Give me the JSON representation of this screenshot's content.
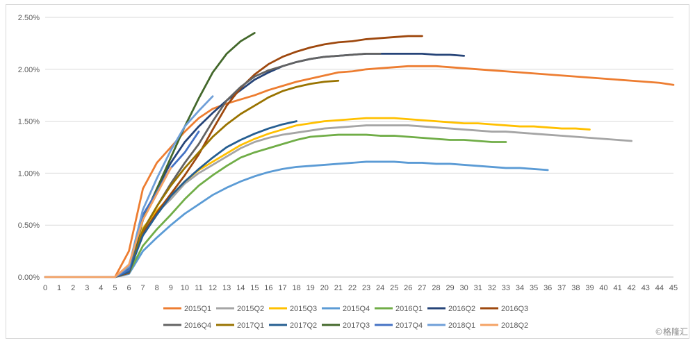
{
  "watermark": "©格隆汇",
  "chart_data": {
    "type": "line",
    "title": "",
    "xlabel": "",
    "ylabel": "",
    "xlim": [
      0,
      45
    ],
    "ylim": [
      0,
      2.5
    ],
    "y_ticks": [
      "0.00%",
      "0.50%",
      "1.00%",
      "1.50%",
      "2.00%",
      "2.50%"
    ],
    "x_ticks": [
      0,
      1,
      2,
      3,
      4,
      5,
      6,
      7,
      8,
      9,
      10,
      11,
      12,
      13,
      14,
      15,
      16,
      17,
      18,
      19,
      20,
      21,
      22,
      23,
      24,
      25,
      26,
      27,
      28,
      29,
      30,
      31,
      32,
      33,
      34,
      35,
      36,
      37,
      38,
      39,
      40,
      41,
      42,
      43,
      44,
      45
    ],
    "grid": "horizontal",
    "legend_position": "bottom",
    "series": [
      {
        "name": "2015Q1",
        "color": "#ed7d31",
        "values": [
          0,
          0,
          0,
          0,
          0,
          0,
          0.25,
          0.85,
          1.1,
          1.25,
          1.4,
          1.53,
          1.62,
          1.67,
          1.71,
          1.75,
          1.8,
          1.84,
          1.88,
          1.91,
          1.94,
          1.97,
          1.98,
          2.0,
          2.01,
          2.02,
          2.03,
          2.03,
          2.03,
          2.02,
          2.01,
          2.0,
          1.99,
          1.98,
          1.97,
          1.96,
          1.95,
          1.94,
          1.93,
          1.92,
          1.91,
          1.9,
          1.89,
          1.88,
          1.87,
          1.85
        ]
      },
      {
        "name": "2015Q2",
        "color": "#a5a5a5",
        "values": [
          0,
          0,
          0,
          0,
          0,
          0,
          0.06,
          0.45,
          0.62,
          0.75,
          0.9,
          1.0,
          1.08,
          1.16,
          1.24,
          1.3,
          1.34,
          1.37,
          1.39,
          1.41,
          1.43,
          1.44,
          1.45,
          1.46,
          1.46,
          1.46,
          1.46,
          1.45,
          1.44,
          1.43,
          1.42,
          1.41,
          1.4,
          1.4,
          1.39,
          1.38,
          1.37,
          1.36,
          1.35,
          1.34,
          1.33,
          1.32,
          1.31
        ]
      },
      {
        "name": "2015Q3",
        "color": "#ffc000",
        "values": [
          0,
          0,
          0,
          0,
          0,
          0,
          0.05,
          0.47,
          0.64,
          0.78,
          0.92,
          1.03,
          1.11,
          1.19,
          1.27,
          1.33,
          1.38,
          1.42,
          1.46,
          1.48,
          1.5,
          1.51,
          1.52,
          1.53,
          1.53,
          1.53,
          1.52,
          1.51,
          1.5,
          1.49,
          1.48,
          1.48,
          1.47,
          1.46,
          1.45,
          1.45,
          1.44,
          1.43,
          1.43,
          1.42
        ]
      },
      {
        "name": "2015Q4",
        "color": "#5b9bd5",
        "values": [
          0,
          0,
          0,
          0,
          0,
          0,
          0.03,
          0.25,
          0.38,
          0.5,
          0.61,
          0.7,
          0.79,
          0.86,
          0.92,
          0.97,
          1.01,
          1.04,
          1.06,
          1.07,
          1.08,
          1.09,
          1.1,
          1.11,
          1.11,
          1.11,
          1.1,
          1.1,
          1.09,
          1.09,
          1.08,
          1.07,
          1.06,
          1.05,
          1.05,
          1.04,
          1.03
        ]
      },
      {
        "name": "2016Q1",
        "color": "#70ad47",
        "values": [
          0,
          0,
          0,
          0,
          0,
          0,
          0.04,
          0.3,
          0.46,
          0.6,
          0.75,
          0.88,
          0.98,
          1.07,
          1.15,
          1.2,
          1.24,
          1.28,
          1.32,
          1.35,
          1.36,
          1.37,
          1.37,
          1.37,
          1.36,
          1.36,
          1.35,
          1.34,
          1.33,
          1.32,
          1.32,
          1.31,
          1.3,
          1.3
        ]
      },
      {
        "name": "2016Q2",
        "color": "#264478",
        "values": [
          0,
          0,
          0,
          0,
          0,
          0,
          0.05,
          0.55,
          0.85,
          1.1,
          1.3,
          1.45,
          1.58,
          1.7,
          1.8,
          1.9,
          1.97,
          2.03,
          2.07,
          2.1,
          2.12,
          2.13,
          2.14,
          2.15,
          2.15,
          2.15,
          2.15,
          2.15,
          2.14,
          2.14,
          2.13
        ]
      },
      {
        "name": "2016Q3",
        "color": "#9e480e",
        "values": [
          0,
          0,
          0,
          0,
          0,
          0,
          0.04,
          0.42,
          0.62,
          0.8,
          0.98,
          1.18,
          1.42,
          1.65,
          1.82,
          1.95,
          2.05,
          2.12,
          2.17,
          2.21,
          2.24,
          2.26,
          2.27,
          2.29,
          2.3,
          2.31,
          2.32,
          2.32
        ]
      },
      {
        "name": "2016Q4",
        "color": "#636363",
        "values": [
          0,
          0,
          0,
          0,
          0,
          0,
          0.05,
          0.45,
          0.68,
          0.9,
          1.1,
          1.28,
          1.5,
          1.7,
          1.83,
          1.93,
          1.99,
          2.03,
          2.07,
          2.1,
          2.12,
          2.13,
          2.14,
          2.15,
          2.15
        ]
      },
      {
        "name": "2017Q1",
        "color": "#997300",
        "values": [
          0,
          0,
          0,
          0,
          0,
          0,
          0.05,
          0.45,
          0.68,
          0.88,
          1.05,
          1.2,
          1.35,
          1.47,
          1.57,
          1.65,
          1.73,
          1.79,
          1.83,
          1.86,
          1.88,
          1.89
        ]
      },
      {
        "name": "2017Q2",
        "color": "#255e91",
        "values": [
          0,
          0,
          0,
          0,
          0,
          0,
          0.05,
          0.4,
          0.6,
          0.78,
          0.92,
          1.04,
          1.15,
          1.25,
          1.32,
          1.38,
          1.43,
          1.47,
          1.5
        ]
      },
      {
        "name": "2017Q3",
        "color": "#43682b",
        "values": [
          0,
          0,
          0,
          0,
          0,
          0,
          0.08,
          0.55,
          0.85,
          1.15,
          1.45,
          1.72,
          1.97,
          2.15,
          2.27,
          2.35
        ]
      },
      {
        "name": "2017Q4",
        "color": "#4472c4",
        "values": [
          0,
          0,
          0,
          0,
          0,
          0,
          0.07,
          0.6,
          0.82,
          1.05,
          1.2,
          1.4
        ]
      },
      {
        "name": "2018Q1",
        "color": "#6f9fd8",
        "values": [
          0,
          0,
          0,
          0,
          0,
          0,
          0.1,
          0.65,
          0.95,
          1.22,
          1.45,
          1.6,
          1.74
        ]
      },
      {
        "name": "2018Q2",
        "color": "#f4a264",
        "values": [
          0,
          0,
          0,
          0,
          0,
          0,
          0.12,
          0.55,
          0.8,
          1.05
        ]
      }
    ]
  }
}
